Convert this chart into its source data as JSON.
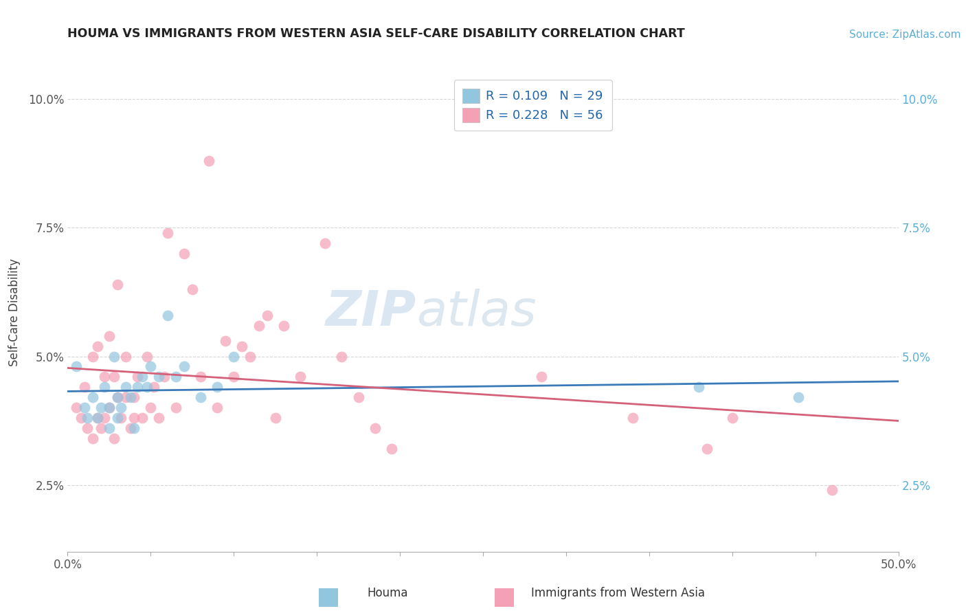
{
  "title": "HOUMA VS IMMIGRANTS FROM WESTERN ASIA SELF-CARE DISABILITY CORRELATION CHART",
  "source_text": "Source: ZipAtlas.com",
  "xlabel_houma": "Houma",
  "xlabel_immigrants": "Immigrants from Western Asia",
  "ylabel": "Self-Care Disability",
  "xlim": [
    0.0,
    0.5
  ],
  "ylim": [
    0.012,
    0.105
  ],
  "xticks": [
    0.0,
    0.05,
    0.1,
    0.15,
    0.2,
    0.25,
    0.3,
    0.35,
    0.4,
    0.45,
    0.5
  ],
  "xtick_labels_show": [
    "0.0%",
    "",
    "",
    "",
    "",
    "",
    "",
    "",
    "",
    "",
    "50.0%"
  ],
  "yticks": [
    0.025,
    0.05,
    0.075,
    0.1
  ],
  "yticklabels_left": [
    "2.5%",
    "5.0%",
    "7.5%",
    "10.0%"
  ],
  "yticklabels_right": [
    "2.5%",
    "5.0%",
    "7.5%",
    "10.0%"
  ],
  "R_houma": 0.109,
  "N_houma": 29,
  "R_immigrants": 0.228,
  "N_immigrants": 56,
  "color_houma": "#92c5de",
  "color_immigrants": "#f4a0b5",
  "line_color_houma": "#3a7ab8",
  "line_color_immigrants": "#d4607a",
  "watermark_zip": "ZIP",
  "watermark_atlas": "atlas",
  "houma_x": [
    0.005,
    0.01,
    0.012,
    0.015,
    0.018,
    0.02,
    0.022,
    0.025,
    0.025,
    0.028,
    0.03,
    0.03,
    0.032,
    0.035,
    0.038,
    0.04,
    0.042,
    0.045,
    0.048,
    0.05,
    0.055,
    0.06,
    0.065,
    0.07,
    0.08,
    0.09,
    0.1,
    0.38,
    0.44
  ],
  "houma_y": [
    0.048,
    0.04,
    0.038,
    0.042,
    0.038,
    0.04,
    0.044,
    0.036,
    0.04,
    0.05,
    0.038,
    0.042,
    0.04,
    0.044,
    0.042,
    0.036,
    0.044,
    0.046,
    0.044,
    0.048,
    0.046,
    0.058,
    0.046,
    0.048,
    0.042,
    0.044,
    0.05,
    0.044,
    0.042
  ],
  "immigrants_x": [
    0.005,
    0.008,
    0.01,
    0.012,
    0.015,
    0.015,
    0.018,
    0.018,
    0.02,
    0.022,
    0.022,
    0.025,
    0.025,
    0.028,
    0.028,
    0.03,
    0.03,
    0.032,
    0.035,
    0.035,
    0.038,
    0.04,
    0.04,
    0.042,
    0.045,
    0.048,
    0.05,
    0.052,
    0.055,
    0.058,
    0.06,
    0.065,
    0.07,
    0.075,
    0.08,
    0.085,
    0.09,
    0.095,
    0.1,
    0.105,
    0.11,
    0.115,
    0.12,
    0.125,
    0.13,
    0.14,
    0.155,
    0.165,
    0.175,
    0.185,
    0.195,
    0.285,
    0.34,
    0.385,
    0.4,
    0.46
  ],
  "immigrants_y": [
    0.04,
    0.038,
    0.044,
    0.036,
    0.034,
    0.05,
    0.038,
    0.052,
    0.036,
    0.038,
    0.046,
    0.04,
    0.054,
    0.034,
    0.046,
    0.042,
    0.064,
    0.038,
    0.042,
    0.05,
    0.036,
    0.038,
    0.042,
    0.046,
    0.038,
    0.05,
    0.04,
    0.044,
    0.038,
    0.046,
    0.074,
    0.04,
    0.07,
    0.063,
    0.046,
    0.088,
    0.04,
    0.053,
    0.046,
    0.052,
    0.05,
    0.056,
    0.058,
    0.038,
    0.056,
    0.046,
    0.072,
    0.05,
    0.042,
    0.036,
    0.032,
    0.046,
    0.038,
    0.032,
    0.038,
    0.024
  ]
}
